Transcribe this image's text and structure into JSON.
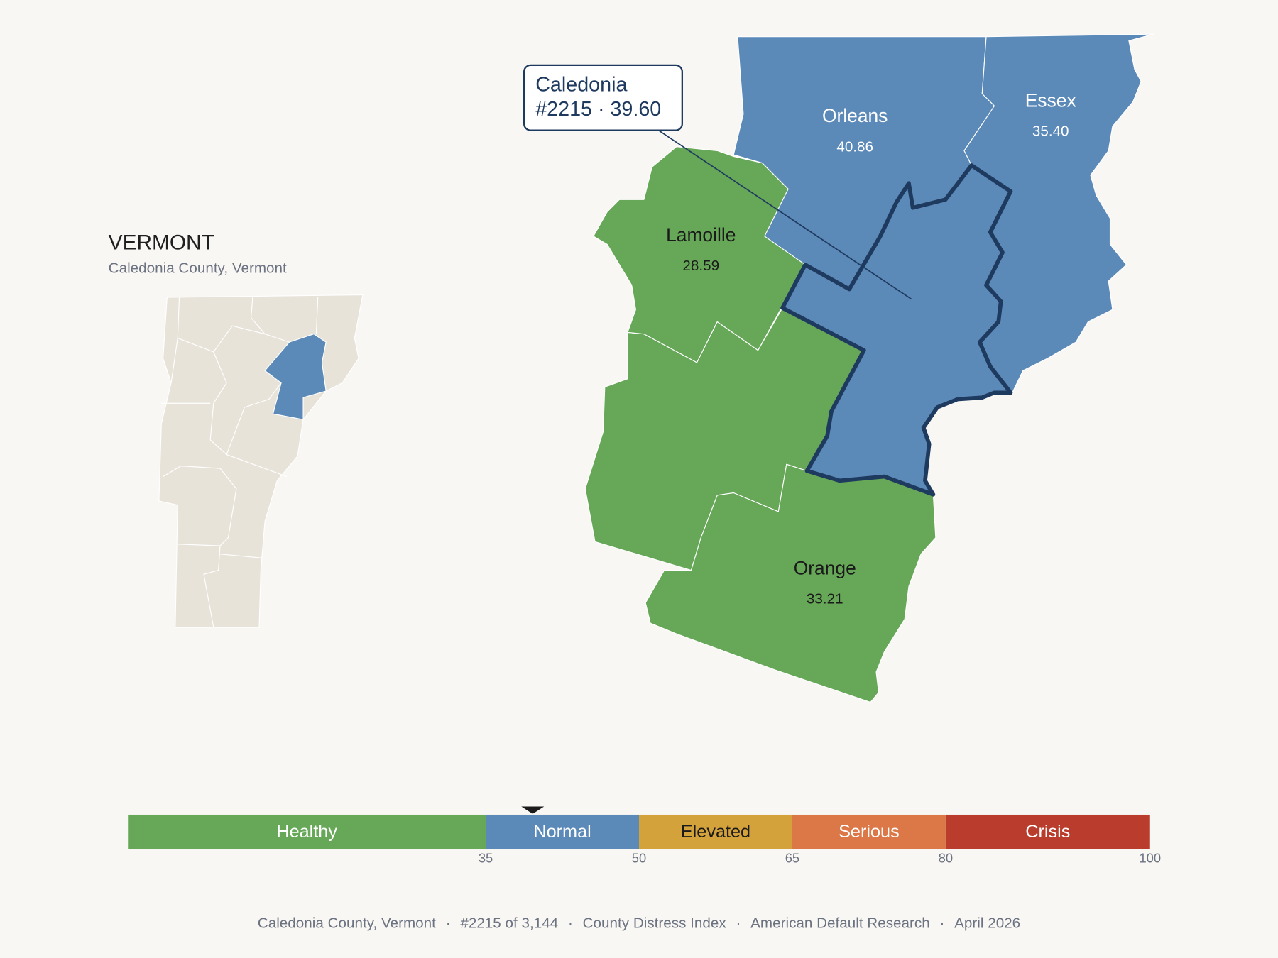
{
  "header": {
    "title": "VERMONT",
    "subtitle": "Caledonia County, Vermont"
  },
  "callout": {
    "name": "Caledonia",
    "detail": "#2215 · 39.60"
  },
  "selected": {
    "name": "Caledonia",
    "score": 39.6
  },
  "counties": [
    {
      "name": "Orleans",
      "value": 40.86,
      "value_label": "40.86"
    },
    {
      "name": "Essex",
      "value": 35.4,
      "value_label": "35.40"
    },
    {
      "name": "Lamoille",
      "value": 28.59,
      "value_label": "28.59"
    },
    {
      "name": "Orange",
      "value": 33.21,
      "value_label": "33.21"
    }
  ],
  "scale": {
    "min": 0,
    "max": 100,
    "bands": [
      {
        "label": "Healthy",
        "color": "#66a758",
        "to": 35
      },
      {
        "label": "Normal",
        "color": "#5b89b8",
        "to": 50
      },
      {
        "label": "Elevated",
        "color": "#d4a23a",
        "to": 65
      },
      {
        "label": "Serious",
        "color": "#dc7748",
        "to": 80
      },
      {
        "label": "Crisis",
        "color": "#b93c2c",
        "to": 100
      }
    ]
  },
  "footer": {
    "separator": "·",
    "items": [
      "Caledonia County, Vermont",
      "#2215 of 3,144",
      "County Distress Index",
      "American Default Research",
      "April 2026"
    ]
  }
}
